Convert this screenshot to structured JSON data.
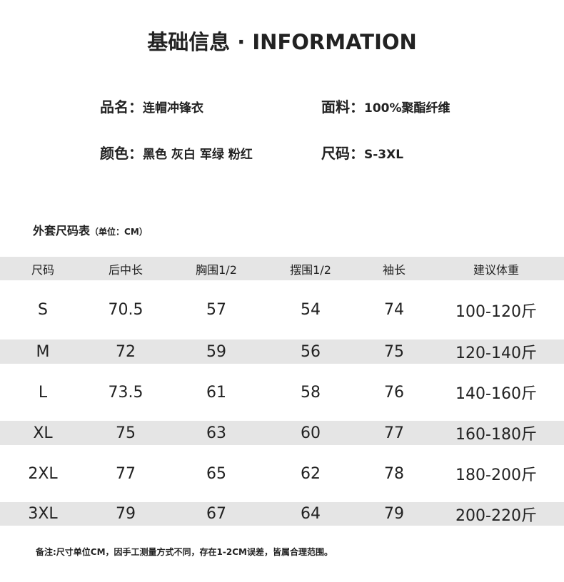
{
  "title": "基础信息 · INFORMATION",
  "info": [
    {
      "label": "品名：",
      "value": "连帽冲锋衣"
    },
    {
      "label": "面料：",
      "value": "100%聚酯纤维"
    },
    {
      "label": "颜色：",
      "value": "黑色 灰白 军绿 粉红"
    },
    {
      "label": "尺码：",
      "value": "S-3XL"
    }
  ],
  "table_title": "外套尺码表",
  "table_unit": "（单位：CM）",
  "headers": [
    "尺码",
    "后中长",
    "胸围1/2",
    "摆围1/2",
    "袖长",
    "建议体重"
  ],
  "rows": [
    [
      "S",
      "70.5",
      "57",
      "54",
      "74",
      "100-120斤"
    ],
    [
      "M",
      "72",
      "59",
      "56",
      "75",
      "120-140斤"
    ],
    [
      "L",
      "73.5",
      "61",
      "58",
      "76",
      "140-160斤"
    ],
    [
      "XL",
      "75",
      "63",
      "60",
      "77",
      "160-180斤"
    ],
    [
      "2XL",
      "77",
      "65",
      "62",
      "78",
      "180-200斤"
    ],
    [
      "3XL",
      "79",
      "67",
      "64",
      "79",
      "200-220斤"
    ]
  ],
  "note": "备注:尺寸单位CM，因手工测量方式不同，存在1-2CM误差，皆属合理范围。",
  "colors": {
    "stripe": "#e5e5e5",
    "text": "#222222"
  }
}
